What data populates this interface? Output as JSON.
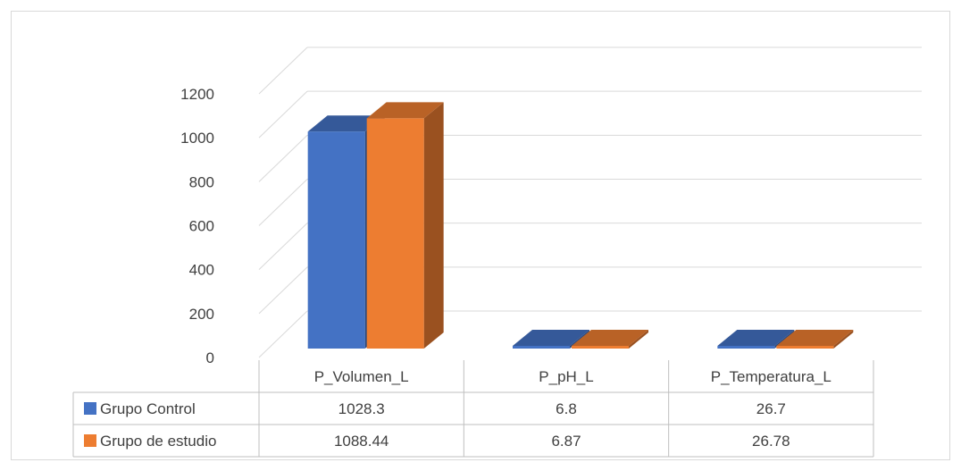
{
  "chart_data": {
    "type": "bar",
    "categories": [
      "P_Volumen_L",
      "P_pH_L",
      "P_Temperatura_L"
    ],
    "series": [
      {
        "name": "Grupo Control",
        "values": [
          1028.3,
          6.8,
          26.7
        ],
        "labels": [
          "1028.3",
          "6.8",
          "26.7"
        ],
        "color": "#4472c4"
      },
      {
        "name": "Grupo de estudio",
        "values": [
          1088.44,
          6.87,
          26.78
        ],
        "labels": [
          "1088.44",
          "6.87",
          "26.78"
        ],
        "color": "#ed7d31"
      }
    ],
    "y_ticks": [
      0,
      200,
      400,
      600,
      800,
      1000,
      1200
    ],
    "ylim": [
      0,
      1200
    ],
    "three_d": true,
    "grid": true,
    "legend": "data-table"
  }
}
